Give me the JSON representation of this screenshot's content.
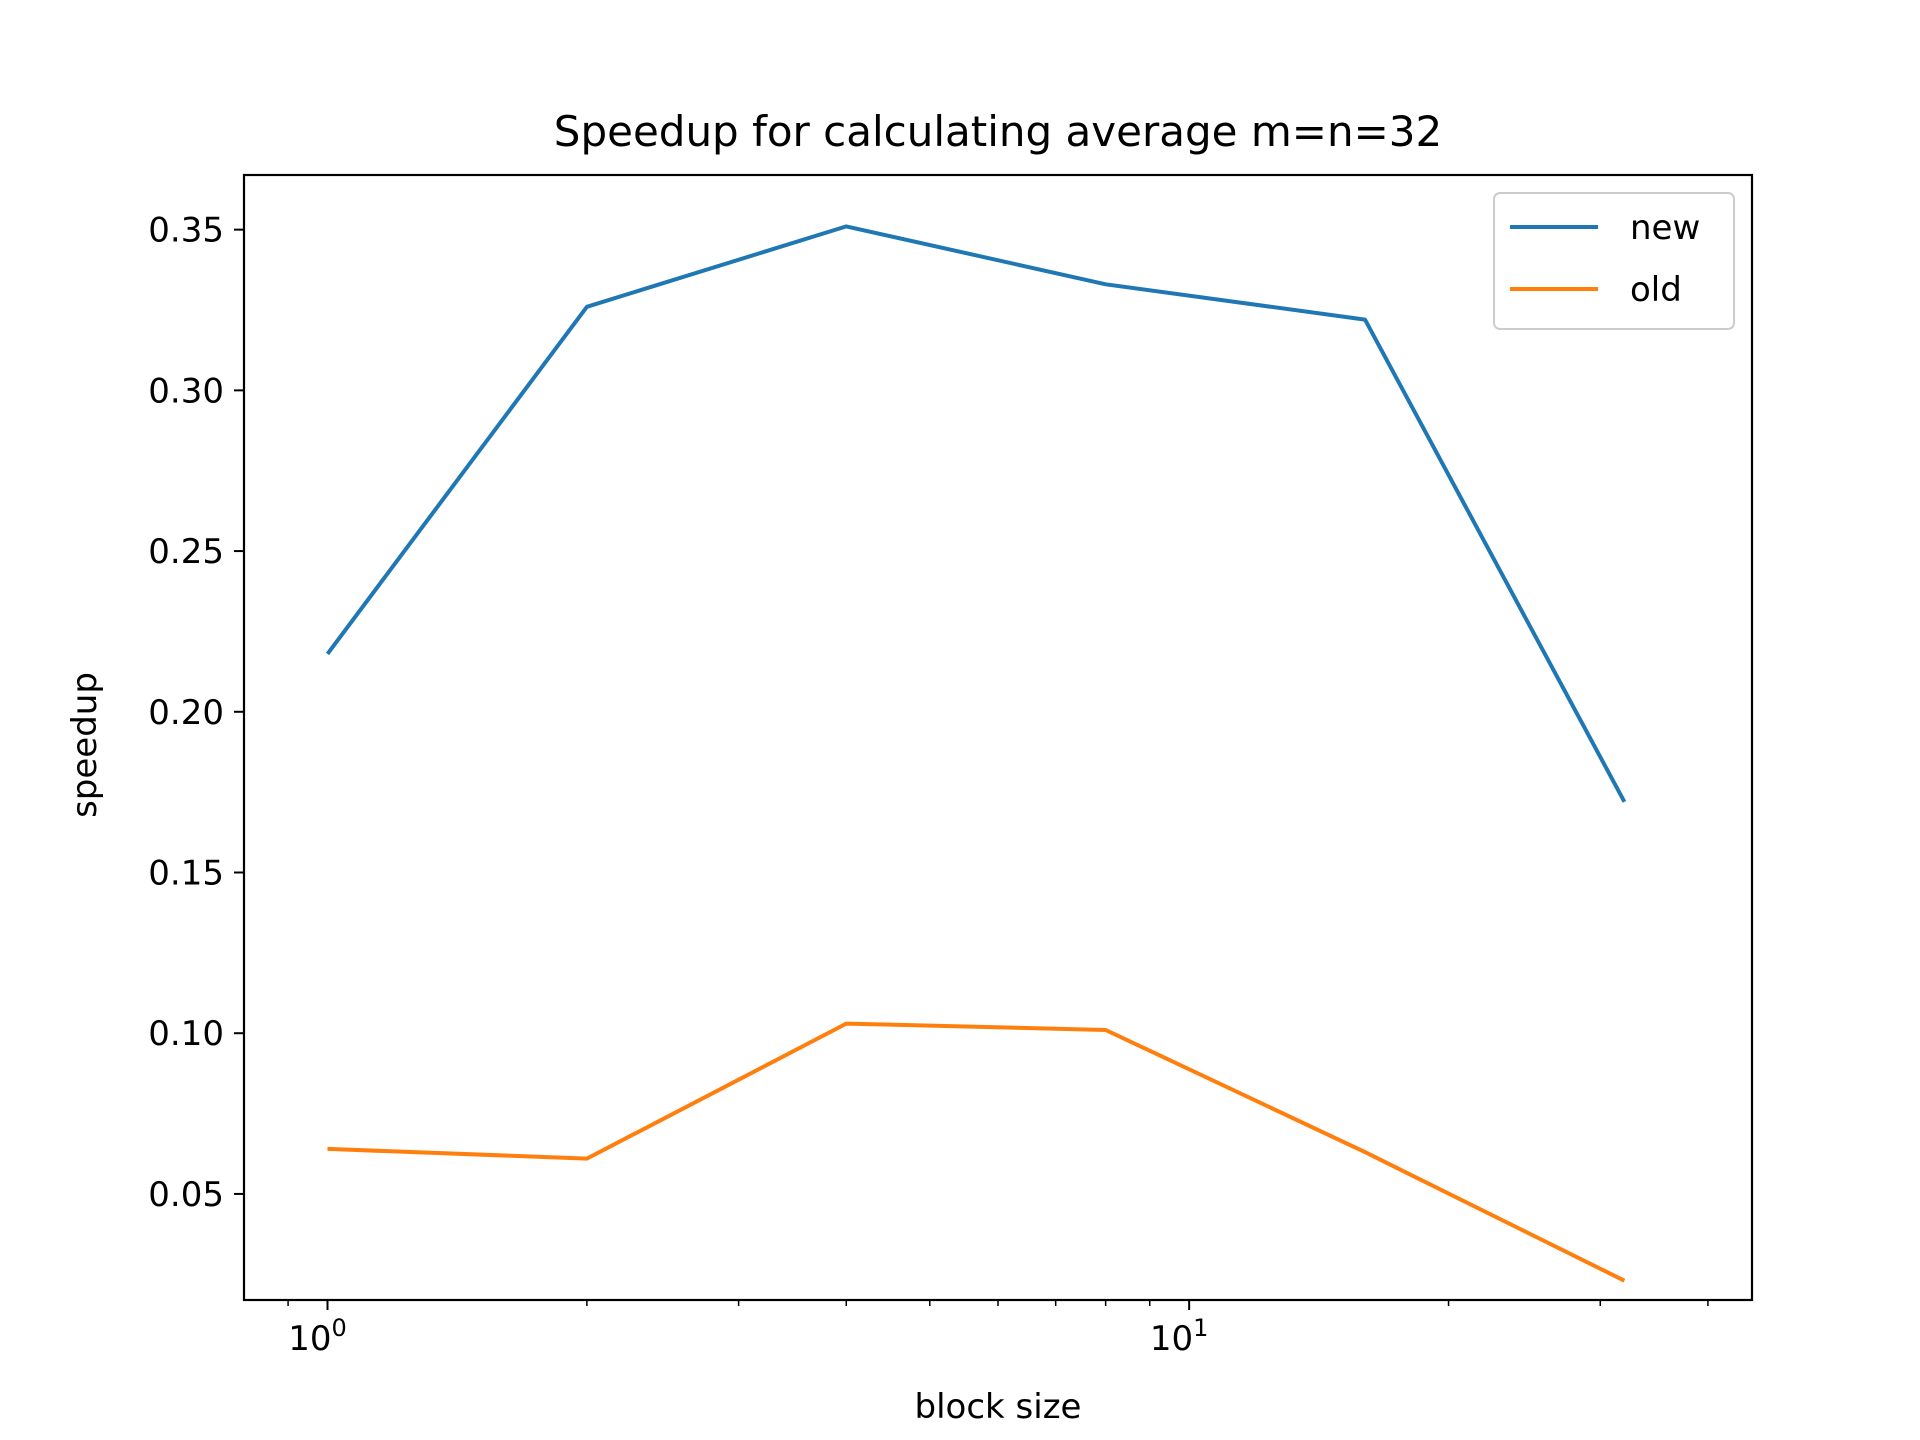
{
  "chart_data": {
    "type": "line",
    "title": "Speedup for calculating average m=n=32",
    "xlabel": "block size",
    "ylabel": "speedup",
    "xscale": "log",
    "xlim": [
      0.8,
      45
    ],
    "ylim": [
      0.017,
      0.367
    ],
    "x": [
      1,
      2,
      4,
      8,
      16,
      32
    ],
    "x_ticks": [
      {
        "value": 1,
        "base": "10",
        "exp": "0"
      },
      {
        "value": 10,
        "base": "10",
        "exp": "1"
      }
    ],
    "y_ticks": [
      {
        "value": 0.05,
        "label": "0.05"
      },
      {
        "value": 0.1,
        "label": "0.10"
      },
      {
        "value": 0.15,
        "label": "0.15"
      },
      {
        "value": 0.2,
        "label": "0.20"
      },
      {
        "value": 0.25,
        "label": "0.25"
      },
      {
        "value": 0.3,
        "label": "0.30"
      },
      {
        "value": 0.35,
        "label": "0.35"
      }
    ],
    "series": [
      {
        "name": "new",
        "color": "#1f77b4",
        "values": [
          0.218,
          0.326,
          0.351,
          0.333,
          0.322,
          0.172
        ]
      },
      {
        "name": "old",
        "color": "#ff7f0e",
        "values": [
          0.064,
          0.061,
          0.103,
          0.101,
          0.063,
          0.023
        ]
      }
    ],
    "legend_position": "top-right",
    "grid": false
  }
}
